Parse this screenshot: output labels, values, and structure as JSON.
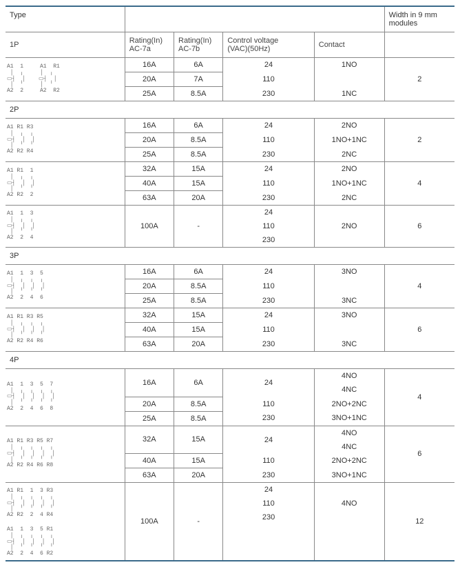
{
  "colors": {
    "rule_main": "#3a6a8a",
    "rule": "#888",
    "text": "#333"
  },
  "header": {
    "type": "Type",
    "width": "Width in 9 mm modules"
  },
  "subheader": {
    "rating_7a": "Rating(In)\nAC-7a",
    "rating_7b": "Rating(In)\nAC-7b",
    "ctrl_voltage": "Control voltage\n(VAC)(50Hz)",
    "contact": "Contact"
  },
  "sections": {
    "p1": {
      "label": "1P"
    },
    "p2": {
      "label": "2P"
    },
    "p3": {
      "label": "3P"
    },
    "p4": {
      "label": "4P"
    }
  },
  "p1": {
    "diagram1": "A1  1     A1  R1\n │  ╷     │  ╷\n▭┤  │    ▭┤  │\n │  ╵     │  ╵\nA2  2     A2  R2",
    "rows": [
      {
        "r7a": "16A",
        "r7b": "6A"
      },
      {
        "r7a": "20A",
        "r7b": "7A"
      },
      {
        "r7a": "25A",
        "r7b": "8.5A"
      }
    ],
    "voltages": [
      "24",
      "110",
      "230"
    ],
    "contacts": [
      "1NO",
      "",
      "1NC"
    ],
    "width": "2"
  },
  "p2_a": {
    "diagram": "A1 R1 R3\n │  ╷  ╷\n▭┤  │  │\n │  ╵  ╵\nA2 R2 R4",
    "rows": [
      {
        "r7a": "16A",
        "r7b": "6A"
      },
      {
        "r7a": "20A",
        "r7b": "8.5A"
      },
      {
        "r7a": "25A",
        "r7b": "8.5A"
      }
    ],
    "voltages": [
      "24",
      "110",
      "230"
    ],
    "contacts": [
      "2NO",
      "1NO+1NC",
      "2NC"
    ],
    "width": "2"
  },
  "p2_b": {
    "diagram": "A1 R1  1\n │  ╷  ╷\n▭┤  │  │\n │  ╵  ╵\nA2 R2  2",
    "rows": [
      {
        "r7a": "32A",
        "r7b": "15A"
      },
      {
        "r7a": "40A",
        "r7b": "15A"
      },
      {
        "r7a": "63A",
        "r7b": "20A"
      }
    ],
    "voltages": [
      "24",
      "110",
      "230"
    ],
    "contacts": [
      "2NO",
      "1NO+1NC",
      "2NC"
    ],
    "width": "4"
  },
  "p2_c": {
    "diagram": "A1  1  3\n │  ╷  ╷\n▭┤  │  │\n │  ╵  ╵\nA2  2  4",
    "rows": [
      {
        "r7a": "100A",
        "r7b": "-"
      }
    ],
    "voltages": [
      "24",
      "110",
      "230"
    ],
    "contacts": [
      "",
      "2NO",
      ""
    ],
    "width": "6"
  },
  "p3_a": {
    "diagram": "A1  1  3  5\n │  ╷  ╷  ╷\n▭┤  │  │  │\n │  ╵  ╵  ╵\nA2  2  4  6",
    "rows": [
      {
        "r7a": "16A",
        "r7b": "6A"
      },
      {
        "r7a": "20A",
        "r7b": "8.5A"
      },
      {
        "r7a": "25A",
        "r7b": "8.5A"
      }
    ],
    "voltages": [
      "24",
      "110",
      "230"
    ],
    "contacts": [
      "3NO",
      "",
      "3NC"
    ],
    "width": "4"
  },
  "p3_b": {
    "diagram": "A1 R1 R3 R5\n │  ╷  ╷  ╷\n▭┤  │  │  │\n │  ╵  ╵  ╵\nA2 R2 R4 R6",
    "rows": [
      {
        "r7a": "32A",
        "r7b": "15A"
      },
      {
        "r7a": "40A",
        "r7b": "15A"
      },
      {
        "r7a": "63A",
        "r7b": "20A"
      }
    ],
    "voltages": [
      "24",
      "110",
      "230"
    ],
    "contacts": [
      "3NO",
      "",
      "3NC"
    ],
    "width": "6"
  },
  "p4_a": {
    "diagram": "A1  1  3  5  7\n │  ╷  ╷  ╷  ╷\n▭┤  │  │  │  │\n │  ╵  ╵  ╵  ╵\nA2  2  4  6  8",
    "rows": [
      {
        "r7a": "16A",
        "r7b": "6A"
      },
      {
        "r7a": "20A",
        "r7b": "8.5A"
      },
      {
        "r7a": "25A",
        "r7b": "8.5A"
      }
    ],
    "voltages": [
      "24",
      "110",
      "230"
    ],
    "contacts_4": [
      "4NO",
      "4NC",
      "2NO+2NC",
      "3NO+1NC"
    ],
    "width": "4"
  },
  "p4_b": {
    "diagram": "A1 R1 R3 R5 R7\n │  ╷  ╷  ╷  ╷\n▭┤  │  │  │  │\n │  ╵  ╵  ╵  ╵\nA2 R2 R4 R6 R8",
    "rows": [
      {
        "r7a": "32A",
        "r7b": "15A"
      },
      {
        "r7a": "40A",
        "r7b": "15A"
      },
      {
        "r7a": "63A",
        "r7b": "20A"
      }
    ],
    "voltages": [
      "24",
      "110",
      "230"
    ],
    "contacts_4": [
      "4NO",
      "4NC",
      "2NO+2NC",
      "3NO+1NC"
    ],
    "width": "6"
  },
  "p4_c": {
    "diagram1": "A1 R1  1  3 R3\n │  ╷  ╷  ╷  ╷\n▭┤  │  │  │  │\n │  ╵  ╵  ╵  ╵\nA2 R2  2  4 R4",
    "diagram2": "A1  1  3  5 R1\n │  ╷  ╷  ╷  ╷\n▭┤  │  │  │  │\n │  ╵  ╵  ╵  ╵\nA2  2  4  6 R2",
    "rows": [
      {
        "r7a": "100A",
        "r7b": "-"
      }
    ],
    "voltages": [
      "24",
      "110",
      "230"
    ],
    "contacts": [
      "",
      "4NO",
      ""
    ],
    "width": "12"
  }
}
